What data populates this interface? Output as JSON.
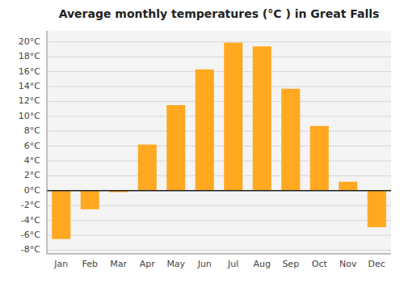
{
  "chart_data": {
    "type": "bar",
    "title": "Average monthly temperatures (°C ) in Great Falls",
    "categories": [
      "Jan",
      "Feb",
      "Mar",
      "Apr",
      "May",
      "Jun",
      "Jul",
      "Aug",
      "Sep",
      "Oct",
      "Nov",
      "Dec"
    ],
    "values": [
      -6.5,
      -2.5,
      -0.2,
      6.2,
      11.5,
      16.3,
      19.9,
      19.4,
      13.7,
      8.7,
      1.2,
      -4.9
    ],
    "color": "#FFA820",
    "ylim": [
      -8.5,
      21.5
    ],
    "yticks": [
      {
        "value": -8,
        "label": "-8°C"
      },
      {
        "value": -6,
        "label": "-6°C"
      },
      {
        "value": -4,
        "label": "-4°C"
      },
      {
        "value": -2,
        "label": "-2°C"
      },
      {
        "value": 0,
        "label": "0°C"
      },
      {
        "value": 2,
        "label": "2°C"
      },
      {
        "value": 4,
        "label": "4°C"
      },
      {
        "value": 6,
        "label": "6°C"
      },
      {
        "value": 8,
        "label": "8°C"
      },
      {
        "value": 10,
        "label": "10°C"
      },
      {
        "value": 12,
        "label": "12°C"
      },
      {
        "value": 14,
        "label": "14°C"
      },
      {
        "value": 16,
        "label": "16°C"
      },
      {
        "value": 18,
        "label": "18°C"
      },
      {
        "value": 20,
        "label": "20°C"
      }
    ],
    "grid": true
  }
}
